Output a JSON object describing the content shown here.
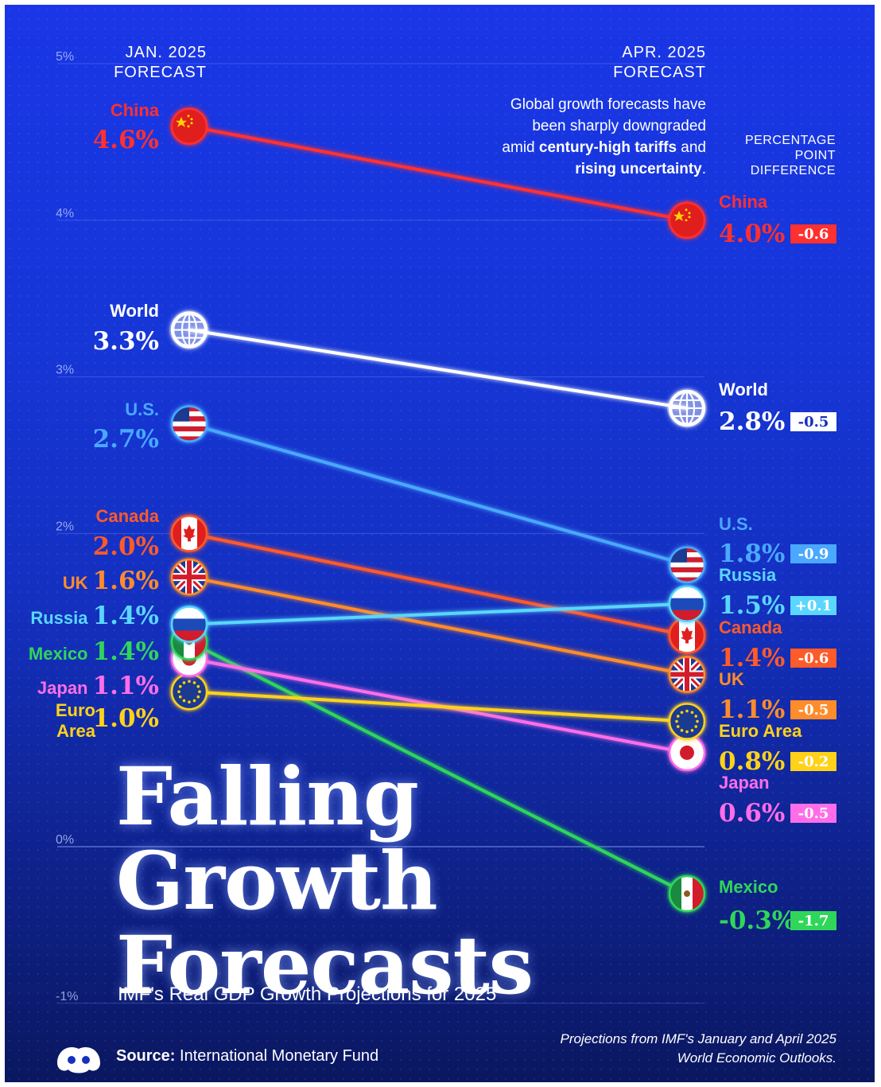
{
  "colors": {
    "china": "#ff3030",
    "world": "#ffffff",
    "us": "#4aa8ff",
    "canada": "#ff5a2a",
    "uk": "#ff8c2a",
    "russia": "#5ad6ff",
    "mexico": "#2fd65a",
    "japan": "#ff6ee8",
    "euro": "#ffd21a"
  },
  "header": {
    "col_left": [
      "JAN. 2025",
      "FORECAST"
    ],
    "col_right": [
      "APR. 2025",
      "FORECAST"
    ],
    "note_lines": [
      [
        "Global growth forecasts have"
      ],
      [
        "been sharply downgraded"
      ],
      [
        "amid ",
        "century-high tariffs",
        " and"
      ],
      [
        "rising uncertainty",
        "."
      ]
    ],
    "ppd_lines": [
      "PERCENTAGE",
      "POINT",
      "DIFFERENCE"
    ]
  },
  "chart_data": {
    "type": "line",
    "x": [
      "JAN. 2025 FORECAST",
      "APR. 2025 FORECAST"
    ],
    "y_ticks": [
      {
        "value": 5,
        "label": "5%"
      },
      {
        "value": 4,
        "label": "4%"
      },
      {
        "value": 3,
        "label": "3%"
      },
      {
        "value": 2,
        "label": "2%"
      },
      {
        "value": 0,
        "label": "0%"
      },
      {
        "value": -1,
        "label": "-1%"
      }
    ],
    "ylim": [
      -1,
      5
    ],
    "grid": true,
    "series": [
      {
        "name": "China",
        "jan": 4.6,
        "apr": 4.0,
        "jan_label": "4.6%",
        "apr_label": "4.0%",
        "diff": "-0.6",
        "color_key": "china",
        "icon": "china-flag-icon"
      },
      {
        "name": "World",
        "jan": 3.3,
        "apr": 2.8,
        "jan_label": "3.3%",
        "apr_label": "2.8%",
        "diff": "-0.5",
        "color_key": "world",
        "icon": "globe-icon"
      },
      {
        "name": "U.S.",
        "jan": 2.7,
        "apr": 1.8,
        "jan_label": "2.7%",
        "apr_label": "1.8%",
        "diff": "-0.9",
        "color_key": "us",
        "icon": "us-flag-icon"
      },
      {
        "name": "Canada",
        "jan": 2.0,
        "apr": 1.4,
        "jan_label": "2.0%",
        "apr_label": "1.4%",
        "diff": "-0.6",
        "color_key": "canada",
        "icon": "canada-flag-icon"
      },
      {
        "name": "UK",
        "jan": 1.6,
        "apr": 1.1,
        "jan_label": "1.6%",
        "apr_label": "1.1%",
        "diff": "-0.5",
        "color_key": "uk",
        "icon": "uk-flag-icon"
      },
      {
        "name": "Russia",
        "jan": 1.4,
        "apr": 1.5,
        "jan_label": "1.4%",
        "apr_label": "1.5%",
        "diff": "+0.1",
        "color_key": "russia",
        "icon": "russia-flag-icon"
      },
      {
        "name": "Mexico",
        "jan": 1.4,
        "apr": -0.3,
        "jan_label": "1.4%",
        "apr_label": "-0.3%",
        "diff": "-1.7",
        "color_key": "mexico",
        "icon": "mexico-flag-icon"
      },
      {
        "name": "Japan",
        "jan": 1.1,
        "apr": 0.6,
        "jan_label": "1.1%",
        "apr_label": "0.6%",
        "diff": "-0.5",
        "color_key": "japan",
        "icon": "japan-flag-icon"
      },
      {
        "name": "Euro Area",
        "jan": 1.0,
        "apr": 0.8,
        "jan_label": "1.0%",
        "apr_label": "0.8%",
        "diff": "-0.2",
        "color_key": "euro",
        "icon": "eu-flag-icon"
      }
    ]
  },
  "title_lines": [
    "Falling",
    "Growth",
    "Forecasts"
  ],
  "subtitle": "IMF's Real GDP Growth Projections for 2025",
  "source": {
    "label": "Source:",
    "text": " International Monetary Fund"
  },
  "footnote": [
    "Projections from IMF's January and April 2025",
    "World Economic Outlooks."
  ]
}
